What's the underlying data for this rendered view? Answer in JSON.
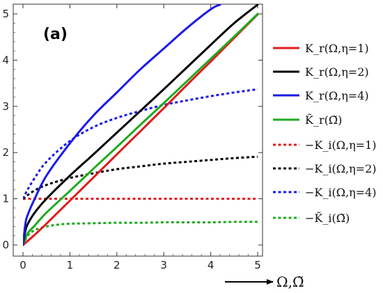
{
  "panel_label": "(a)",
  "axis_caption": "Ω,Ω̃",
  "chart_data": {
    "type": "line",
    "title": "",
    "xlabel": "Ω,Ω̃",
    "ylabel": "",
    "xlim": [
      0,
      5
    ],
    "ylim": [
      0,
      5.2
    ],
    "x_ticks": [
      0,
      1,
      2,
      3,
      4,
      5
    ],
    "y_ticks": [
      0,
      1,
      2,
      3,
      4,
      5
    ],
    "x_tick_labels": [
      "0",
      "1",
      "2",
      "3",
      "4",
      "5"
    ],
    "y_tick_labels": [
      "0",
      "1",
      "2",
      "3",
      "4",
      "5"
    ],
    "grid": false,
    "legend_position": "right",
    "series": [
      {
        "name": "K_r(Ω,η=1)",
        "color": "#e01b1b",
        "dash": "solid",
        "x": [
          0,
          0.25,
          0.5,
          1,
          1.5,
          2,
          2.5,
          3,
          3.5,
          4,
          4.5,
          5
        ],
        "y": [
          0,
          0.22,
          0.46,
          0.96,
          1.46,
          1.96,
          2.46,
          2.96,
          3.47,
          3.97,
          4.48,
          4.99
        ]
      },
      {
        "name": "K_r(Ω,η=2)",
        "color": "#000000",
        "dash": "solid",
        "x": [
          0,
          0.05,
          0.1,
          0.25,
          0.5,
          1,
          1.5,
          2,
          2.5,
          3,
          3.5,
          4,
          4.5,
          5
        ],
        "y": [
          0,
          0.3,
          0.45,
          0.7,
          1.0,
          1.5,
          1.96,
          2.43,
          2.9,
          3.37,
          3.85,
          4.33,
          4.8,
          5.2
        ]
      },
      {
        "name": "K_r(Ω,η=4)",
        "color": "#1a1ae6",
        "dash": "solid",
        "x": [
          0,
          0.05,
          0.1,
          0.25,
          0.5,
          1,
          1.5,
          2,
          2.5,
          3,
          3.5,
          4,
          4.2
        ],
        "y": [
          0,
          0.45,
          0.65,
          1.0,
          1.5,
          2.2,
          2.8,
          3.3,
          3.8,
          4.25,
          4.7,
          5.1,
          5.2
        ]
      },
      {
        "name": "K̃_r(Ω̃)",
        "color": "#1faa1f",
        "dash": "solid",
        "x": [
          0,
          0.1,
          0.25,
          0.5,
          1,
          1.5,
          2,
          2.5,
          3,
          3.5,
          4,
          4.5,
          5
        ],
        "y": [
          0,
          0.25,
          0.42,
          0.7,
          1.17,
          1.65,
          2.12,
          2.6,
          3.07,
          3.55,
          4.03,
          4.51,
          5.0
        ]
      },
      {
        "name": "−K_i(Ω,η=1)",
        "color": "#e01b1b",
        "dash": "dotted",
        "x": [
          0,
          0.5,
          1,
          1.5,
          2,
          2.5,
          3,
          3.5,
          4,
          4.5,
          5
        ],
        "y": [
          1,
          1,
          1,
          1,
          1,
          1,
          1,
          1,
          1,
          1,
          1
        ]
      },
      {
        "name": "−K_i(Ω,η=2)",
        "color": "#000000",
        "dash": "dotted",
        "x": [
          0,
          0.1,
          0.25,
          0.5,
          1,
          1.5,
          2,
          2.5,
          3,
          3.5,
          4,
          4.5,
          5
        ],
        "y": [
          1,
          1.08,
          1.18,
          1.3,
          1.45,
          1.55,
          1.64,
          1.7,
          1.76,
          1.8,
          1.84,
          1.88,
          1.91
        ]
      },
      {
        "name": "−K_i(Ω,η=4)",
        "color": "#1a1ae6",
        "dash": "dotted",
        "x": [
          0,
          0.1,
          0.25,
          0.5,
          1,
          1.5,
          2,
          2.5,
          3,
          3.5,
          4,
          4.5,
          5
        ],
        "y": [
          1,
          1.2,
          1.45,
          1.8,
          2.25,
          2.55,
          2.75,
          2.9,
          3.03,
          3.13,
          3.22,
          3.3,
          3.37
        ]
      },
      {
        "name": "−K̃_i(Ω̃)",
        "color": "#1faa1f",
        "dash": "dotted",
        "x": [
          0,
          0.1,
          0.25,
          0.5,
          0.75,
          1,
          1.5,
          2,
          2.5,
          3,
          3.5,
          4,
          4.5,
          5
        ],
        "y": [
          0,
          0.2,
          0.32,
          0.4,
          0.44,
          0.46,
          0.47,
          0.48,
          0.48,
          0.49,
          0.49,
          0.49,
          0.5,
          0.5
        ]
      }
    ]
  }
}
